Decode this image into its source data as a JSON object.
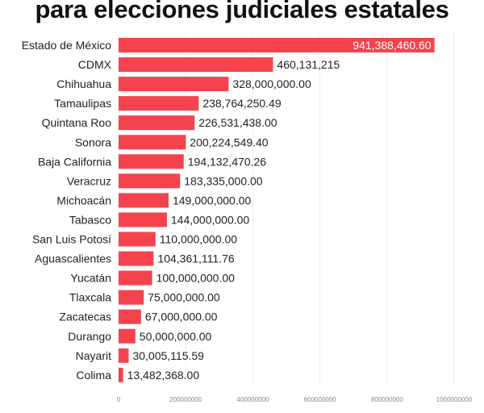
{
  "chart_data": {
    "type": "bar",
    "orientation": "horizontal",
    "title": "para elecciones judiciales estatales",
    "categories": [
      "Estado de México",
      "CDMX",
      "Chihuahua",
      "Tamaulipas",
      "Quintana Roo",
      "Sonora",
      "Baja California",
      "Veracruz",
      "Michoacán",
      "Tabasco",
      "San Luis Potosí",
      "Aguascalientes",
      "Yucatán",
      "Tlaxcala",
      "Zacatecas",
      "Durango",
      "Nayarit",
      "Colima"
    ],
    "values": [
      941388460.6,
      460131215,
      328000000.0,
      238764250.49,
      226531438.0,
      200224549.4,
      194132470.26,
      183335000.0,
      149000000.0,
      144000000.0,
      110000000.0,
      104361111.76,
      100000000.0,
      75000000.0,
      67000000.0,
      50000000.0,
      30005115.59,
      13482368.0
    ],
    "data_labels": [
      "941,388,460.60",
      "460,131,215",
      "328,000,000.00",
      "238,764,250.49",
      "226,531,438.00",
      "200,224,549.40",
      "194,132,470.26",
      "183,335,000.00",
      "149,000,000.00",
      "144,000,000.00",
      "110,000,000.00",
      "104,361,111.76",
      "100,000,000.00",
      "75,000,000.00",
      "67,000,000.00",
      "50,000,000.00",
      "30,005,115.59",
      "13,482,368.00"
    ],
    "x_ticks": [
      "0",
      "200000000",
      "400000000",
      "600000000",
      "800000000",
      "1000000000"
    ],
    "xlim": [
      0,
      1000000000
    ],
    "grid": true,
    "bar_color": "#f5434e"
  }
}
